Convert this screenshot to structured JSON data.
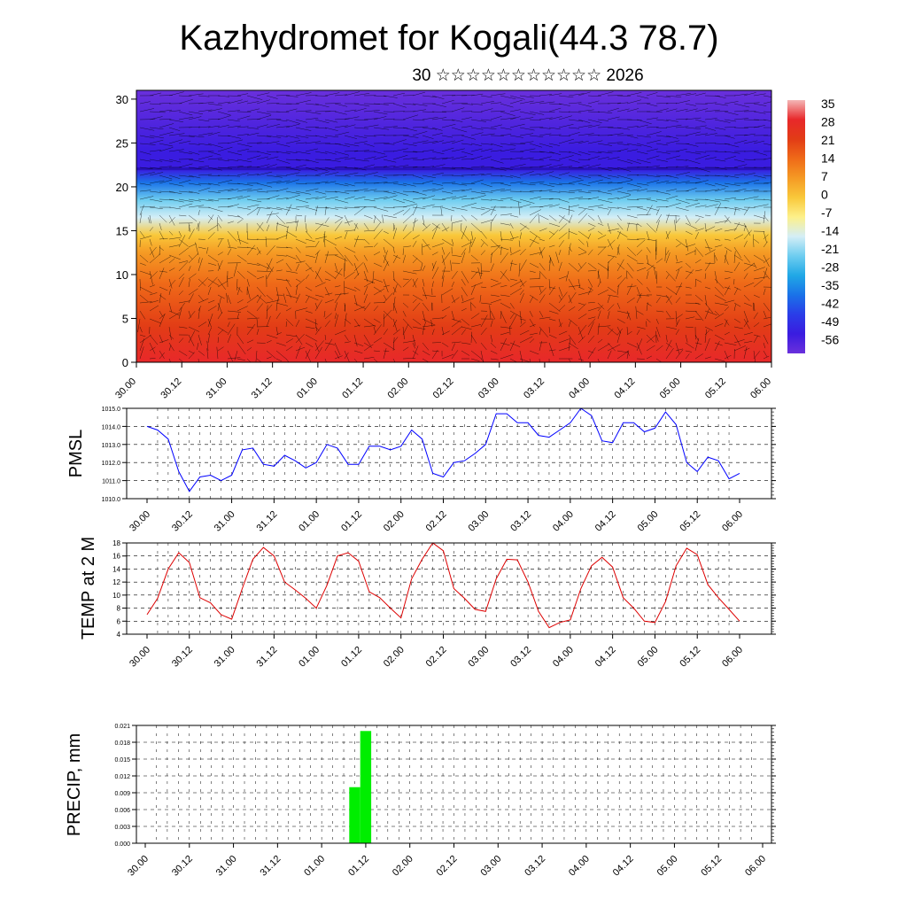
{
  "header": {
    "title": "Kazhydromet for Kogali(44.3 78.7)",
    "subtitle": "30 ☆☆☆☆☆☆☆☆☆☆☆ 2026"
  },
  "chart_data": [
    {
      "type": "heatmap",
      "name": "cross-section",
      "description_kind": "temperature cross-section with wind vectors",
      "x_tick_labels": [
        "30.00",
        "30.12",
        "31.00",
        "31.12",
        "01.00",
        "01.12",
        "02.00",
        "02.12",
        "03.00",
        "03.12",
        "04.00",
        "04.12",
        "05.00",
        "05.12",
        "06.00"
      ],
      "ylim": [
        0,
        31
      ],
      "y_ticks": [
        0,
        5,
        10,
        15,
        20,
        25,
        30
      ],
      "colorbar": {
        "labels": [
          "35",
          "28",
          "21",
          "14",
          "7",
          "0",
          "-7",
          "-14",
          "-21",
          "-28",
          "-35",
          "-42",
          "-49",
          "-56"
        ],
        "stops": [
          {
            "value": 35,
            "color": "#f4b6b6"
          },
          {
            "value": 28,
            "color": "#e8282a"
          },
          {
            "value": 21,
            "color": "#e23c16"
          },
          {
            "value": 14,
            "color": "#ef6a18"
          },
          {
            "value": 7,
            "color": "#f59a24"
          },
          {
            "value": 0,
            "color": "#f9c83a"
          },
          {
            "value": -7,
            "color": "#fdf08a"
          },
          {
            "value": -14,
            "color": "#d4eef6"
          },
          {
            "value": -21,
            "color": "#6ecdf0"
          },
          {
            "value": -28,
            "color": "#20a8e6"
          },
          {
            "value": -35,
            "color": "#1a72e8"
          },
          {
            "value": -42,
            "color": "#2a3de8"
          },
          {
            "value": -49,
            "color": "#3a1ce0"
          },
          {
            "value": -56,
            "color": "#6a30dc"
          }
        ]
      },
      "temperature_profile": [
        {
          "level": 0,
          "value": 24
        },
        {
          "level": 4,
          "value": 16
        },
        {
          "level": 9,
          "value": 8
        },
        {
          "level": 12.5,
          "value": 2
        },
        {
          "level": 14.5,
          "value": -6
        },
        {
          "level": 16.5,
          "value": -15
        },
        {
          "level": 18.5,
          "value": -28
        },
        {
          "level": 20.5,
          "value": -40
        },
        {
          "level": 22,
          "value": -52
        },
        {
          "level": 24,
          "value": -56
        },
        {
          "level": 31,
          "value": -58
        }
      ]
    },
    {
      "type": "line",
      "name": "pmsl",
      "ylabel": "PMSL",
      "ylim": [
        1010,
        1015
      ],
      "y_tick_labels": [
        "1010.0",
        "1011.0",
        "1012.0",
        "1013.0",
        "1014.0",
        "1015.0"
      ],
      "x_tick_labels": [
        "30.00",
        "30.12",
        "31.00",
        "31.12",
        "01.00",
        "01.12",
        "02.00",
        "02.12",
        "03.00",
        "03.12",
        "04.00",
        "04.12",
        "05.00",
        "05.12",
        "06.00"
      ],
      "color": "#0000ff",
      "values": [
        1014.0,
        1013.8,
        1013.3,
        1011.5,
        1010.4,
        1011.2,
        1011.3,
        1011.0,
        1011.3,
        1012.7,
        1012.8,
        1011.9,
        1011.8,
        1012.4,
        1012.1,
        1011.7,
        1012.0,
        1013.0,
        1012.8,
        1011.9,
        1011.9,
        1012.9,
        1012.9,
        1012.7,
        1012.9,
        1013.8,
        1013.3,
        1011.4,
        1011.2,
        1012.0,
        1012.1,
        1012.5,
        1013.0,
        1014.7,
        1014.7,
        1014.2,
        1014.2,
        1013.5,
        1013.4,
        1013.8,
        1014.2,
        1015.0,
        1014.6,
        1013.2,
        1013.1,
        1014.2,
        1014.2,
        1013.7,
        1013.9,
        1014.8,
        1014.1,
        1012.0,
        1011.5,
        1012.3,
        1012.1,
        1011.1,
        1011.4
      ]
    },
    {
      "type": "line",
      "name": "temp2m",
      "ylabel": "TEMP at 2 M",
      "ylim": [
        4,
        18
      ],
      "y_tick_labels": [
        "4",
        "6",
        "8",
        "10",
        "12",
        "14",
        "16",
        "18"
      ],
      "x_tick_labels": [
        "30.00",
        "30.12",
        "31.00",
        "31.12",
        "01.00",
        "01.12",
        "02.00",
        "02.12",
        "03.00",
        "03.12",
        "04.00",
        "04.12",
        "05.00",
        "05.12",
        "06.00"
      ],
      "color": "#dd0000",
      "values": [
        7.0,
        9.5,
        14.0,
        16.5,
        15.0,
        9.6,
        8.8,
        7.0,
        6.3,
        11.0,
        15.5,
        17.3,
        16.0,
        12.0,
        10.8,
        9.5,
        8.0,
        11.5,
        16.0,
        16.5,
        15.2,
        10.5,
        9.6,
        8.0,
        6.5,
        12.5,
        15.5,
        18.0,
        16.8,
        11.0,
        9.5,
        7.8,
        7.5,
        12.5,
        15.5,
        15.4,
        12.0,
        7.5,
        5.0,
        5.8,
        6.2,
        11.0,
        14.5,
        15.8,
        14.3,
        9.6,
        8.0,
        6.0,
        5.8,
        9.0,
        14.5,
        17.2,
        16.2,
        11.6,
        9.6,
        7.8,
        6.0
      ]
    },
    {
      "type": "bar",
      "name": "precip",
      "ylabel": "PRECIP, mm",
      "ylim": [
        0,
        0.021
      ],
      "y_tick_labels": [
        "0.000",
        "0.003",
        "0.006",
        "0.009",
        "0.012",
        "0.015",
        "0.018",
        "0.021"
      ],
      "x_tick_labels": [
        "30.00",
        "30.12",
        "31.00",
        "31.12",
        "01.00",
        "01.12",
        "02.00",
        "02.12",
        "03.00",
        "03.12",
        "04.00",
        "04.12",
        "05.00",
        "05.12",
        "06.00"
      ],
      "color": "#00ee00",
      "bars": [
        {
          "step": 19,
          "value": 0.01
        },
        {
          "step": 20,
          "value": 0.02
        }
      ]
    }
  ]
}
